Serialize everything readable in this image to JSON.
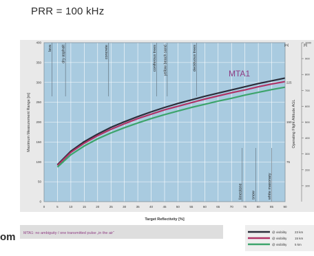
{
  "header_text": "PRR = 100 kHz",
  "side_text": "om",
  "colors": {
    "plot_bg": "#a9cbe0",
    "grid": "#ffffff",
    "frame_bg": "#e9e9e9",
    "mta_label": "#8e3c83",
    "series": [
      "#2b2d3a",
      "#b13366",
      "#3ca46b"
    ]
  },
  "chart_data": {
    "type": "line",
    "xlabel": "Target Reflectivity [%]",
    "ylabel": "Maximum Measurement Range [m]",
    "y2label_ft": "[ft]",
    "y2label_m": "[m]",
    "y2title": "Operating Flight Altitude AGL",
    "xlim": [
      0,
      90
    ],
    "ylim": [
      0,
      400
    ],
    "x_ticks": [
      "0",
      "5",
      "10",
      "15",
      "20",
      "25",
      "30",
      "35",
      "40",
      "45",
      "50",
      "55",
      "60",
      "65",
      "70",
      "75",
      "80",
      "85",
      "90"
    ],
    "y_ticks": [
      "0",
      "50",
      "100",
      "150",
      "200",
      "250",
      "300",
      "350",
      "400"
    ],
    "y2_m_ticks": [
      "75",
      "150",
      "225"
    ],
    "y2_ft_ticks": [
      "100",
      "200",
      "300",
      "400",
      "500",
      "600",
      "700",
      "800",
      "900",
      "1000"
    ],
    "grid": true,
    "mta_zone": "MTA1",
    "materials": [
      {
        "label": "lava",
        "x": 3
      },
      {
        "label": "dry asphalt",
        "x": 8
      },
      {
        "label": "concrete",
        "x": 24
      },
      {
        "label": "coniferous trees",
        "x": 42
      },
      {
        "label": "yellow beach sand",
        "x": 46
      },
      {
        "label": "deciduous trees",
        "x": 57
      },
      {
        "label": "limestone",
        "x": 74
      },
      {
        "label": "snow",
        "x": 79
      },
      {
        "label": "white masonary",
        "x": 85
      }
    ],
    "series": [
      {
        "name": "@ visibility",
        "visibility": "23 km",
        "x": [
          5,
          10,
          15,
          20,
          25,
          30,
          35,
          40,
          45,
          50,
          55,
          60,
          65,
          70,
          75,
          80,
          85,
          90
        ],
        "y": [
          93,
          127,
          151,
          170,
          187,
          201,
          214,
          226,
          237,
          247,
          256,
          265,
          273,
          281,
          289,
          297,
          304,
          311
        ]
      },
      {
        "name": "@ visibility",
        "visibility": "15 km",
        "x": [
          5,
          10,
          15,
          20,
          25,
          30,
          35,
          40,
          45,
          50,
          55,
          60,
          65,
          70,
          75,
          80,
          85,
          90
        ],
        "y": [
          91,
          124,
          147,
          166,
          182,
          196,
          209,
          220,
          231,
          240,
          249,
          258,
          266,
          274,
          281,
          289,
          296,
          302
        ]
      },
      {
        "name": "@ visibility",
        "visibility": "5 km",
        "x": [
          5,
          10,
          15,
          20,
          25,
          30,
          35,
          40,
          45,
          50,
          55,
          60,
          65,
          70,
          75,
          80,
          85,
          90
        ],
        "y": [
          87,
          118,
          140,
          158,
          173,
          186,
          198,
          209,
          219,
          228,
          237,
          245,
          253,
          260,
          268,
          275,
          282,
          288
        ]
      }
    ],
    "note": "MTA1: no ambiguity / one transmitted pulse „in the air“"
  }
}
